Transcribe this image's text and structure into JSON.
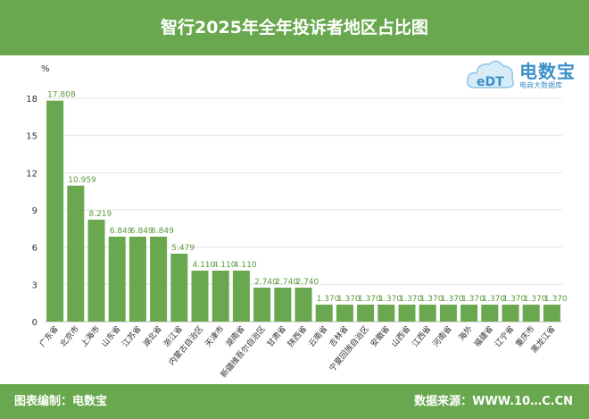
{
  "header": {
    "title": "智行2025年全年投诉者地区占比图"
  },
  "footer": {
    "left": "图表编制：电数宝",
    "right": "数据来源：WWW.10⁠…C.CN"
  },
  "logo": {
    "main": "电数宝",
    "sub": "电商大数据库",
    "mark": "eDT"
  },
  "colors": {
    "bar": "#6aa84f",
    "header": "#6aa84f",
    "label": "#5a9a3c",
    "grid": "#e5e5e5"
  },
  "chart_data": {
    "type": "bar",
    "unit_label": "%",
    "ylim": [
      0,
      18
    ],
    "yticks": [
      0,
      3,
      6,
      9,
      12,
      15,
      18
    ],
    "grid": true,
    "categories": [
      "广东省",
      "北京市",
      "上海市",
      "山东省",
      "江苏省",
      "湖北省",
      "浙江省",
      "内蒙古自治区",
      "天津市",
      "湖南省",
      "新疆维吾尔自治区",
      "甘肃省",
      "陕西省",
      "云南省",
      "吉林省",
      "宁夏回族自治区",
      "安徽省",
      "山西省",
      "江西省",
      "河南省",
      "海外",
      "福建省",
      "辽宁省",
      "重庆市",
      "黑龙江省"
    ],
    "values": [
      17.808,
      10.959,
      8.219,
      6.849,
      6.849,
      6.849,
      5.479,
      4.11,
      4.11,
      4.11,
      2.74,
      2.74,
      2.74,
      1.37,
      1.37,
      1.37,
      1.37,
      1.37,
      1.37,
      1.37,
      1.37,
      1.37,
      1.37,
      1.37,
      1.37
    ],
    "value_labels": [
      "17.808",
      "10.959",
      "8.219",
      "6.849",
      "6.849",
      "6.849",
      "5.479",
      "4.110",
      "4.110",
      "4.110",
      "2.740",
      "2.740",
      "2.740",
      "1.370",
      "1.370",
      "1.370",
      "1.370",
      "1.370",
      "1.370",
      "1.370",
      "1.370",
      "1.370",
      "1.370",
      "1.370",
      "1.370"
    ]
  }
}
